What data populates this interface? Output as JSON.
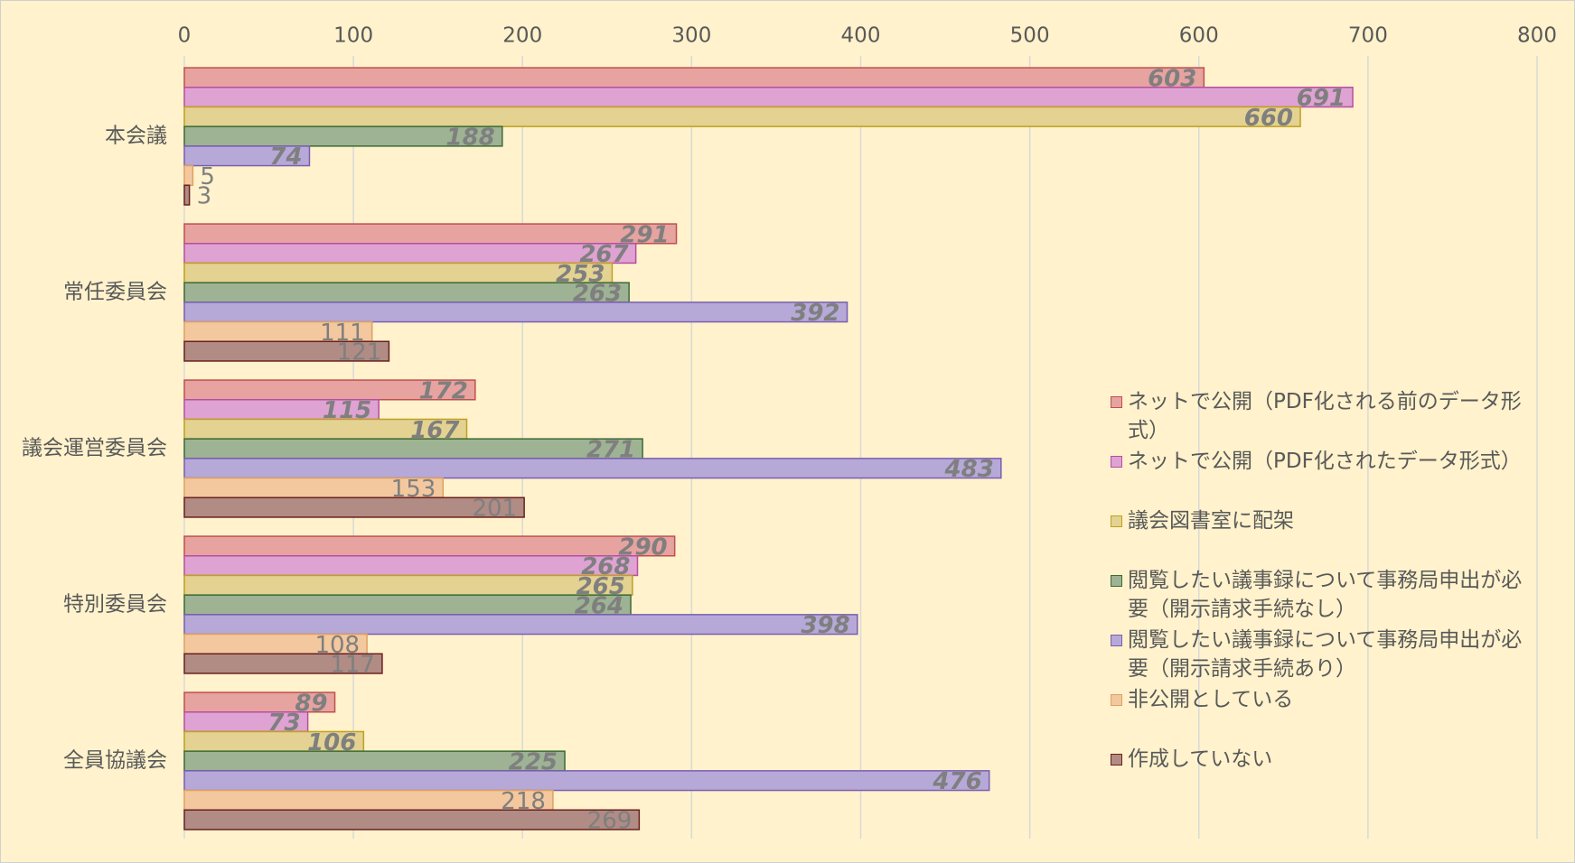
{
  "chart_data": {
    "type": "bar",
    "orientation": "horizontal",
    "categories": [
      "本会議",
      "常任委員会",
      "議会運営委員会",
      "特別委員会",
      "全員協議会"
    ],
    "series": [
      {
        "name": "ネットで公開（PDF化される前のデータ形式）",
        "color": "#e6a3a0",
        "values": [
          603,
          291,
          172,
          290,
          89
        ]
      },
      {
        "name": "ネットで公開（PDF化されたデータ形式）",
        "color": "#dea3d2",
        "values": [
          691,
          267,
          115,
          268,
          73
        ]
      },
      {
        "name": "議会図書室に配架",
        "color": "#e3d291",
        "values": [
          660,
          253,
          167,
          265,
          106
        ]
      },
      {
        "name": "閲覧したい議事録について事務局申出が必要（開示請求手続なし）",
        "color": "#9db394",
        "values": [
          188,
          263,
          271,
          264,
          225
        ]
      },
      {
        "name": "閲覧したい議事録について事務局申出が必要（開示請求手続あり）",
        "color": "#b6a9d8",
        "values": [
          74,
          392,
          483,
          398,
          476
        ]
      },
      {
        "name": "非公開としている",
        "color": "#f3c89e",
        "values": [
          5,
          111,
          153,
          108,
          218
        ]
      },
      {
        "name": "作成していない",
        "color": "#b08c84",
        "values": [
          3,
          121,
          201,
          117,
          269
        ]
      }
    ],
    "xlim": [
      0,
      800
    ],
    "xticks": [
      0,
      100,
      200,
      300,
      400,
      500,
      600,
      700,
      800
    ],
    "grid": true
  }
}
